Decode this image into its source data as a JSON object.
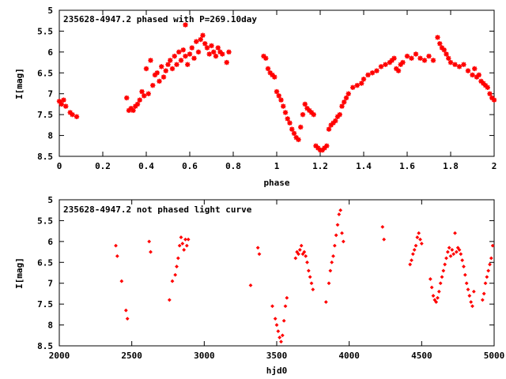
{
  "chart_data": [
    {
      "type": "scatter",
      "title": "235628-4947.2 phased with P=269.10day",
      "xlabel": "phase",
      "ylabel": "I[mag]",
      "xlim": [
        0,
        2
      ],
      "ylim": [
        8.5,
        5
      ],
      "y_inverted": true,
      "grid": false,
      "marker_color": "#ff0000",
      "marker": "star",
      "xticks": [
        "0",
        "0.2",
        "0.4",
        "0.6",
        "0.8",
        "1",
        "1.2",
        "1.4",
        "1.6",
        "1.8",
        "2"
      ],
      "yticks": [
        "5",
        "5.5",
        "6",
        "6.5",
        "7",
        "7.5",
        "8",
        "8.5"
      ],
      "points": [
        [
          0.0,
          7.18
        ],
        [
          0.01,
          7.25
        ],
        [
          0.02,
          7.15
        ],
        [
          0.03,
          7.3
        ],
        [
          0.05,
          7.45
        ],
        [
          0.06,
          7.5
        ],
        [
          0.08,
          7.55
        ],
        [
          0.31,
          7.1
        ],
        [
          0.32,
          7.4
        ],
        [
          0.33,
          7.35
        ],
        [
          0.34,
          7.4
        ],
        [
          0.35,
          7.3
        ],
        [
          0.36,
          7.25
        ],
        [
          0.37,
          7.15
        ],
        [
          0.38,
          6.95
        ],
        [
          0.39,
          7.05
        ],
        [
          0.4,
          6.4
        ],
        [
          0.41,
          7.0
        ],
        [
          0.42,
          6.2
        ],
        [
          0.43,
          6.8
        ],
        [
          0.44,
          6.55
        ],
        [
          0.45,
          6.5
        ],
        [
          0.46,
          6.7
        ],
        [
          0.47,
          6.35
        ],
        [
          0.48,
          6.6
        ],
        [
          0.49,
          6.45
        ],
        [
          0.5,
          6.3
        ],
        [
          0.51,
          6.2
        ],
        [
          0.52,
          6.4
        ],
        [
          0.53,
          6.1
        ],
        [
          0.54,
          6.3
        ],
        [
          0.55,
          6.0
        ],
        [
          0.56,
          6.2
        ],
        [
          0.57,
          5.95
        ],
        [
          0.58,
          6.1
        ],
        [
          0.58,
          5.35
        ],
        [
          0.59,
          6.3
        ],
        [
          0.6,
          6.05
        ],
        [
          0.61,
          5.9
        ],
        [
          0.62,
          6.15
        ],
        [
          0.63,
          5.75
        ],
        [
          0.64,
          6.0
        ],
        [
          0.65,
          5.7
        ],
        [
          0.66,
          5.6
        ],
        [
          0.67,
          5.8
        ],
        [
          0.68,
          5.9
        ],
        [
          0.69,
          6.05
        ],
        [
          0.7,
          5.85
        ],
        [
          0.71,
          6.0
        ],
        [
          0.72,
          6.1
        ],
        [
          0.73,
          5.9
        ],
        [
          0.74,
          6.0
        ],
        [
          0.75,
          6.05
        ],
        [
          0.77,
          6.25
        ],
        [
          0.78,
          6.0
        ],
        [
          0.94,
          6.1
        ],
        [
          0.95,
          6.15
        ],
        [
          0.96,
          6.4
        ],
        [
          0.97,
          6.5
        ],
        [
          0.98,
          6.55
        ],
        [
          0.99,
          6.6
        ],
        [
          1.0,
          6.95
        ],
        [
          1.01,
          7.05
        ],
        [
          1.02,
          7.15
        ],
        [
          1.03,
          7.3
        ],
        [
          1.04,
          7.45
        ],
        [
          1.05,
          7.6
        ],
        [
          1.06,
          7.7
        ],
        [
          1.07,
          7.85
        ],
        [
          1.08,
          7.95
        ],
        [
          1.09,
          8.05
        ],
        [
          1.1,
          8.1
        ],
        [
          1.11,
          7.8
        ],
        [
          1.12,
          7.5
        ],
        [
          1.13,
          7.25
        ],
        [
          1.14,
          7.35
        ],
        [
          1.15,
          7.4
        ],
        [
          1.16,
          7.45
        ],
        [
          1.17,
          7.5
        ],
        [
          1.18,
          8.25
        ],
        [
          1.19,
          8.3
        ],
        [
          1.2,
          8.35
        ],
        [
          1.21,
          8.35
        ],
        [
          1.22,
          8.3
        ],
        [
          1.23,
          8.25
        ],
        [
          1.24,
          7.85
        ],
        [
          1.25,
          7.75
        ],
        [
          1.26,
          7.7
        ],
        [
          1.27,
          7.65
        ],
        [
          1.28,
          7.55
        ],
        [
          1.29,
          7.5
        ],
        [
          1.3,
          7.3
        ],
        [
          1.31,
          7.2
        ],
        [
          1.32,
          7.1
        ],
        [
          1.33,
          7.0
        ],
        [
          1.35,
          6.85
        ],
        [
          1.37,
          6.8
        ],
        [
          1.39,
          6.75
        ],
        [
          1.4,
          6.65
        ],
        [
          1.42,
          6.55
        ],
        [
          1.44,
          6.5
        ],
        [
          1.46,
          6.45
        ],
        [
          1.48,
          6.35
        ],
        [
          1.5,
          6.3
        ],
        [
          1.52,
          6.25
        ],
        [
          1.53,
          6.2
        ],
        [
          1.54,
          6.15
        ],
        [
          1.55,
          6.4
        ],
        [
          1.56,
          6.45
        ],
        [
          1.57,
          6.3
        ],
        [
          1.58,
          6.25
        ],
        [
          1.6,
          6.1
        ],
        [
          1.62,
          6.15
        ],
        [
          1.64,
          6.05
        ],
        [
          1.66,
          6.15
        ],
        [
          1.68,
          6.2
        ],
        [
          1.7,
          6.1
        ],
        [
          1.72,
          6.2
        ],
        [
          1.74,
          5.65
        ],
        [
          1.75,
          5.8
        ],
        [
          1.76,
          5.9
        ],
        [
          1.77,
          5.95
        ],
        [
          1.78,
          6.05
        ],
        [
          1.79,
          6.15
        ],
        [
          1.8,
          6.25
        ],
        [
          1.82,
          6.3
        ],
        [
          1.84,
          6.35
        ],
        [
          1.86,
          6.3
        ],
        [
          1.88,
          6.45
        ],
        [
          1.9,
          6.55
        ],
        [
          1.91,
          6.4
        ],
        [
          1.92,
          6.6
        ],
        [
          1.93,
          6.55
        ],
        [
          1.94,
          6.7
        ],
        [
          1.95,
          6.75
        ],
        [
          1.96,
          6.8
        ],
        [
          1.97,
          6.85
        ],
        [
          1.98,
          7.0
        ],
        [
          1.99,
          7.1
        ],
        [
          2.0,
          7.15
        ]
      ]
    },
    {
      "type": "scatter",
      "title": "235628-4947.2 not phased light curve",
      "xlabel": "hjd0",
      "ylabel": "I[mag]",
      "xlim": [
        2000,
        5000
      ],
      "ylim": [
        8.5,
        5
      ],
      "y_inverted": true,
      "grid": false,
      "marker_color": "#ff0000",
      "marker": "diamond",
      "xticks": [
        "2000",
        "2500",
        "3000",
        "3500",
        "4000",
        "4500",
        "5000"
      ],
      "yticks": [
        "5",
        "5.5",
        "6",
        "6.5",
        "7",
        "7.5",
        "8",
        "8.5"
      ],
      "points": [
        [
          2390,
          6.1
        ],
        [
          2400,
          6.35
        ],
        [
          2430,
          6.95
        ],
        [
          2460,
          7.65
        ],
        [
          2470,
          7.85
        ],
        [
          2620,
          6.0
        ],
        [
          2630,
          6.25
        ],
        [
          2760,
          7.4
        ],
        [
          2780,
          6.95
        ],
        [
          2800,
          6.8
        ],
        [
          2810,
          6.6
        ],
        [
          2820,
          6.4
        ],
        [
          2830,
          6.1
        ],
        [
          2840,
          5.9
        ],
        [
          2850,
          6.05
        ],
        [
          2860,
          6.2
        ],
        [
          2870,
          5.95
        ],
        [
          2880,
          6.1
        ],
        [
          2890,
          5.95
        ],
        [
          3320,
          7.05
        ],
        [
          3370,
          6.15
        ],
        [
          3380,
          6.3
        ],
        [
          3470,
          7.55
        ],
        [
          3490,
          7.85
        ],
        [
          3500,
          8.0
        ],
        [
          3510,
          8.15
        ],
        [
          3520,
          8.3
        ],
        [
          3530,
          8.4
        ],
        [
          3540,
          8.25
        ],
        [
          3550,
          7.9
        ],
        [
          3560,
          7.55
        ],
        [
          3570,
          7.35
        ],
        [
          3630,
          6.4
        ],
        [
          3640,
          6.25
        ],
        [
          3650,
          6.3
        ],
        [
          3660,
          6.2
        ],
        [
          3670,
          6.1
        ],
        [
          3680,
          6.3
        ],
        [
          3690,
          6.25
        ],
        [
          3700,
          6.35
        ],
        [
          3710,
          6.5
        ],
        [
          3720,
          6.7
        ],
        [
          3730,
          6.85
        ],
        [
          3740,
          7.0
        ],
        [
          3750,
          7.15
        ],
        [
          3840,
          7.45
        ],
        [
          3860,
          7.0
        ],
        [
          3870,
          6.7
        ],
        [
          3880,
          6.5
        ],
        [
          3890,
          6.35
        ],
        [
          3900,
          6.1
        ],
        [
          3910,
          5.85
        ],
        [
          3920,
          5.6
        ],
        [
          3930,
          5.35
        ],
        [
          3940,
          5.25
        ],
        [
          3950,
          5.8
        ],
        [
          3960,
          6.0
        ],
        [
          4230,
          5.65
        ],
        [
          4240,
          5.95
        ],
        [
          4420,
          6.55
        ],
        [
          4430,
          6.45
        ],
        [
          4440,
          6.3
        ],
        [
          4450,
          6.2
        ],
        [
          4460,
          6.1
        ],
        [
          4470,
          5.9
        ],
        [
          4480,
          5.8
        ],
        [
          4490,
          5.95
        ],
        [
          4500,
          6.05
        ],
        [
          4560,
          6.9
        ],
        [
          4570,
          7.1
        ],
        [
          4580,
          7.3
        ],
        [
          4590,
          7.4
        ],
        [
          4600,
          7.45
        ],
        [
          4610,
          7.35
        ],
        [
          4620,
          7.2
        ],
        [
          4630,
          7.0
        ],
        [
          4640,
          6.85
        ],
        [
          4650,
          6.7
        ],
        [
          4660,
          6.55
        ],
        [
          4670,
          6.4
        ],
        [
          4680,
          6.25
        ],
        [
          4690,
          6.15
        ],
        [
          4700,
          6.35
        ],
        [
          4710,
          6.2
        ],
        [
          4720,
          6.3
        ],
        [
          4730,
          5.8
        ],
        [
          4740,
          6.25
        ],
        [
          4750,
          6.15
        ],
        [
          4760,
          6.2
        ],
        [
          4770,
          6.3
        ],
        [
          4780,
          6.45
        ],
        [
          4790,
          6.6
        ],
        [
          4800,
          6.8
        ],
        [
          4810,
          7.0
        ],
        [
          4820,
          7.15
        ],
        [
          4830,
          7.3
        ],
        [
          4840,
          7.45
        ],
        [
          4850,
          7.55
        ],
        [
          4860,
          7.2
        ],
        [
          4920,
          7.4
        ],
        [
          4930,
          7.25
        ],
        [
          4940,
          7.0
        ],
        [
          4950,
          6.85
        ],
        [
          4960,
          6.7
        ],
        [
          4970,
          6.55
        ],
        [
          4980,
          6.4
        ],
        [
          4990,
          6.1
        ]
      ]
    }
  ]
}
